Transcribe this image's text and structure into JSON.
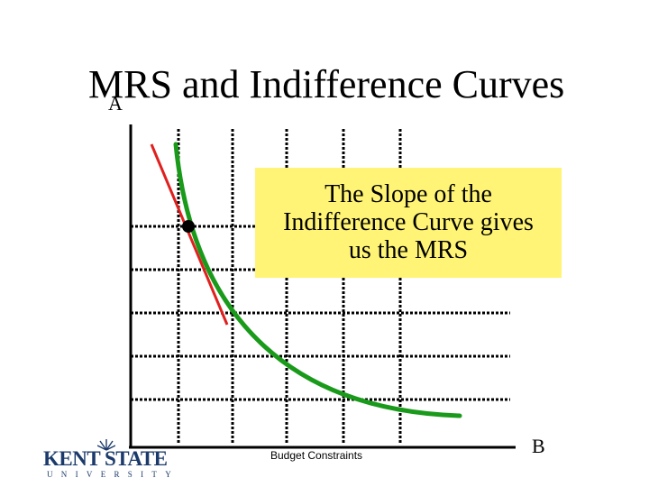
{
  "slide": {
    "title": "MRS and Indifference Curves",
    "axis_y_label": "A",
    "axis_x_label": "B",
    "callout": [
      "The Slope of the",
      "Indifference Curve gives",
      "us the MRS"
    ],
    "budget_label": "Budget  Constraints",
    "logo": {
      "main": "KENT STATE",
      "sub": "UNIVERSITY"
    }
  },
  "colors": {
    "curve": "#1a9a1a",
    "tangent": "#e0201f",
    "callout_bg": "#fff475",
    "logo": "#1b3a6b"
  },
  "icons": [
    "kent-state-logo-icon",
    "tangent-point-dot"
  ]
}
